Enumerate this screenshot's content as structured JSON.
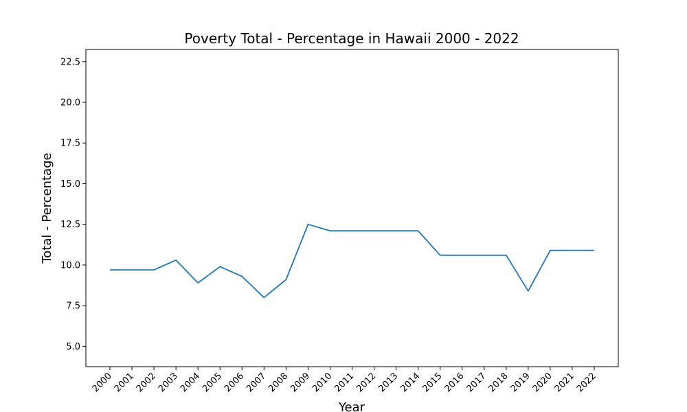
{
  "chart_data": {
    "type": "line",
    "title": "Poverty Total - Percentage in Hawaii 2000 - 2022",
    "xlabel": "Year",
    "ylabel": "Total - Percentage",
    "ylim": [
      3.75,
      23.25
    ],
    "yticks": [
      "5.0",
      "7.5",
      "10.0",
      "12.5",
      "15.0",
      "17.5",
      "20.0",
      "22.5"
    ],
    "grid": false,
    "categories": [
      "2000",
      "2001",
      "2002",
      "2003",
      "2004",
      "2005",
      "2006",
      "2007",
      "2008",
      "2009",
      "2010",
      "2011",
      "2012",
      "2013",
      "2014",
      "2015",
      "2016",
      "2017",
      "2018",
      "2019",
      "2020",
      "2021",
      "2022"
    ],
    "series": [
      {
        "color": "#1f77b4",
        "values": [
          9.7,
          9.7,
          9.7,
          10.3,
          8.9,
          9.9,
          9.3,
          8.0,
          9.1,
          12.5,
          12.1,
          12.1,
          12.1,
          12.1,
          12.1,
          10.6,
          10.6,
          10.6,
          10.6,
          8.4,
          10.9,
          10.9,
          10.9
        ]
      }
    ]
  }
}
